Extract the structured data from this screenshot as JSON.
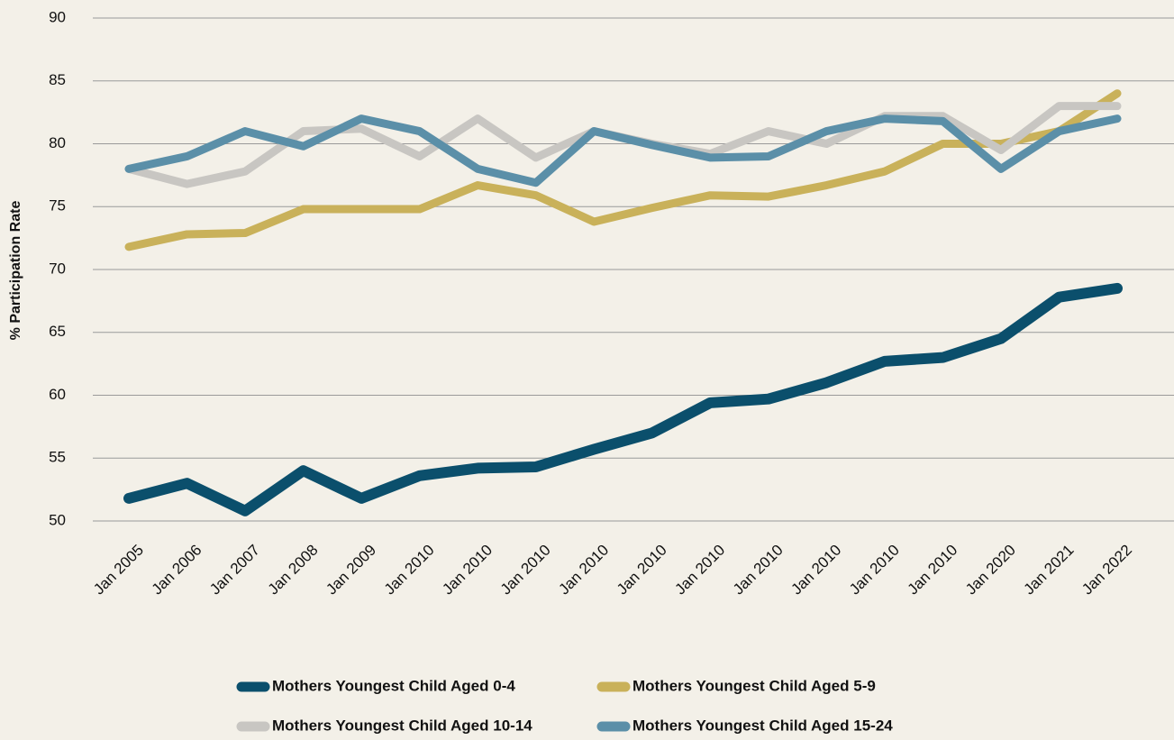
{
  "chart_data": {
    "type": "line",
    "y_label": "% Participation Rate",
    "categories": [
      "Jan 2005",
      "Jan 2006",
      "Jan 2007",
      "Jan 2008",
      "Jan 2009",
      "Jan 2010",
      "Jan 2010",
      "Jan 2010",
      "Jan 2010",
      "Jan 2010",
      "Jan 2010",
      "Jan 2010",
      "Jan 2010",
      "Jan 2010",
      "Jan 2010",
      "Jan 2020",
      "Jan 2021",
      "Jan 2022"
    ],
    "series": [
      {
        "name": "Mothers Youngest Child Aged 0-4",
        "color": "#0b4f6c",
        "values": [
          51.8,
          53,
          50.8,
          54,
          51.8,
          53.6,
          54.2,
          54.3,
          55.7,
          57,
          59.4,
          59.7,
          61,
          62.7,
          63,
          64.5,
          67.8,
          68.5
        ]
      },
      {
        "name": "Mothers Youngest Child Aged 5-9",
        "color": "#c9b15a",
        "values": [
          71.8,
          72.8,
          72.9,
          74.8,
          74.8,
          74.8,
          76.7,
          75.9,
          73.8,
          74.9,
          75.9,
          75.8,
          76.7,
          77.8,
          80,
          80,
          81,
          84
        ]
      },
      {
        "name": "Mothers Youngest Child Aged 10-14",
        "color": "#c8c6c2",
        "values": [
          78,
          76.8,
          77.8,
          81,
          81.2,
          79,
          82,
          78.9,
          81,
          80,
          79.2,
          81,
          80,
          82.2,
          82.2,
          79.5,
          83,
          83
        ]
      },
      {
        "name": "Mothers Youngest Child Aged 15-24",
        "color": "#5b8fa8",
        "values": [
          78,
          79,
          81,
          79.8,
          82,
          81,
          78,
          76.9,
          81,
          79.9,
          78.9,
          79,
          81,
          82,
          81.8,
          78,
          81,
          82
        ]
      }
    ],
    "ylim": [
      50,
      90
    ],
    "yticks": [
      50,
      55,
      60,
      65,
      70,
      75,
      80,
      85,
      90
    ],
    "grid": true
  }
}
